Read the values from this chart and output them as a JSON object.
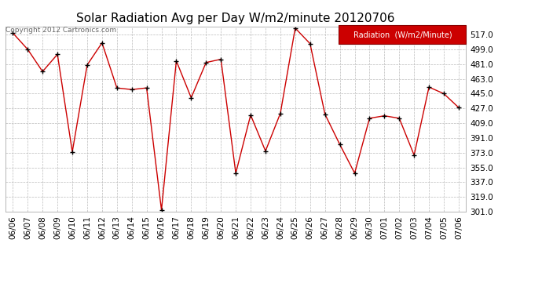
{
  "title": "Solar Radiation Avg per Day W/m2/minute 20120706",
  "copyright": "Copyright 2012 Cartronics.com",
  "legend_label": "Radiation  (W/m2/Minute)",
  "dates": [
    "06/06",
    "06/07",
    "06/08",
    "06/09",
    "06/10",
    "06/11",
    "06/12",
    "06/13",
    "06/14",
    "06/15",
    "06/16",
    "06/17",
    "06/18",
    "06/19",
    "06/20",
    "06/21",
    "06/22",
    "06/23",
    "06/24",
    "06/25",
    "06/26",
    "06/27",
    "06/28",
    "06/29",
    "06/30",
    "07/01",
    "07/02",
    "07/03",
    "07/04",
    "07/05",
    "07/06"
  ],
  "values": [
    519,
    499,
    472,
    493,
    374,
    480,
    507,
    452,
    450,
    452,
    303,
    485,
    440,
    483,
    487,
    348,
    419,
    375,
    421,
    525,
    506,
    420,
    383,
    348,
    415,
    418,
    415,
    370,
    453,
    445,
    428
  ],
  "ylim": [
    301,
    527
  ],
  "yticks": [
    301.0,
    319.0,
    337.0,
    355.0,
    373.0,
    391.0,
    409.0,
    427.0,
    445.0,
    463.0,
    481.0,
    499.0,
    517.0
  ],
  "line_color": "#cc0000",
  "marker_color": "#000000",
  "bg_color": "#ffffff",
  "grid_color": "#bbbbbb",
  "legend_bg": "#cc0000",
  "legend_text_color": "#ffffff",
  "title_fontsize": 11,
  "tick_fontsize": 7.5,
  "copyright_fontsize": 6.5
}
